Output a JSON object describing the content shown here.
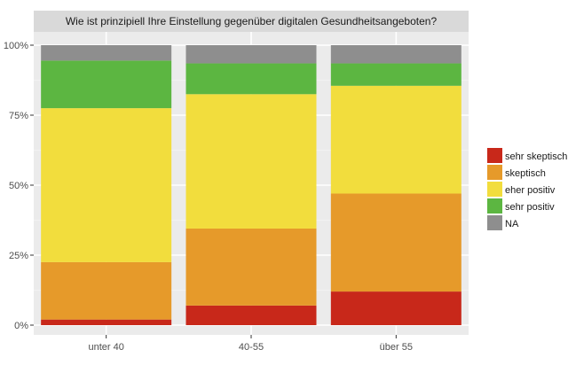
{
  "chart_data": {
    "type": "bar",
    "stacked": true,
    "title": "Wie ist prinzipiell Ihre Einstellung gegenüber digitalen Gesundheitsangeboten?",
    "categories": [
      "unter 40",
      "40-55",
      "über 55"
    ],
    "ylim": [
      0,
      1
    ],
    "yticks": [
      0,
      0.25,
      0.5,
      0.75,
      1
    ],
    "ytick_labels": [
      "0%",
      "25%",
      "50%",
      "75%",
      "100%"
    ],
    "xlabel": "",
    "ylabel": "",
    "grid": true,
    "legend_position": "right",
    "series": [
      {
        "name": "sehr skeptisch",
        "color": "#c8281a",
        "values": [
          0.02,
          0.07,
          0.12
        ]
      },
      {
        "name": "skeptisch",
        "color": "#e69a2a",
        "values": [
          0.205,
          0.275,
          0.35
        ]
      },
      {
        "name": "eher positiv",
        "color": "#f2dd3d",
        "values": [
          0.55,
          0.48,
          0.385
        ]
      },
      {
        "name": "sehr positiv",
        "color": "#5cb641",
        "values": [
          0.17,
          0.11,
          0.08
        ]
      },
      {
        "name": "NA",
        "color": "#8e8e8e",
        "values": [
          0.055,
          0.065,
          0.065
        ]
      }
    ]
  }
}
